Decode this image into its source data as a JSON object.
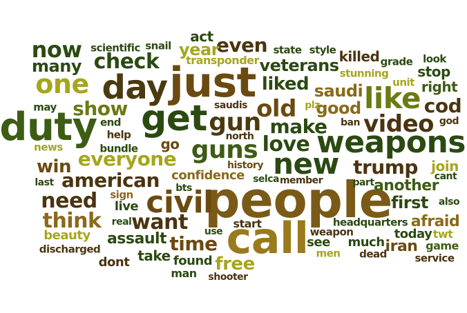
{
  "palette": {
    "dark_green": "#2b4a12",
    "forest": "#3d5c14",
    "olive": "#6b7a14",
    "lime": "#a6a61e",
    "brown": "#6b4a12",
    "gold": "#8a6a1a",
    "dark_brown": "#4a3410"
  },
  "words": [
    {
      "id": "people",
      "text": "people",
      "color": "#7a5a16"
    },
    {
      "id": "just",
      "text": "just",
      "color": "#6b4a12"
    },
    {
      "id": "call",
      "text": "call",
      "color": "#9a7a1e"
    },
    {
      "id": "duty",
      "text": "duty",
      "color": "#3d5c14"
    },
    {
      "id": "get",
      "text": "get",
      "color": "#2b4a12"
    },
    {
      "id": "day",
      "text": "day",
      "color": "#4a3a10"
    },
    {
      "id": "weapons",
      "text": "weapons",
      "color": "#2b4a12"
    },
    {
      "id": "civil",
      "text": "civil",
      "color": "#6b4a12"
    },
    {
      "id": "like",
      "text": "like",
      "color": "#6b7a14"
    },
    {
      "id": "new",
      "text": "new",
      "color": "#2b4a12"
    },
    {
      "id": "one",
      "text": "one",
      "color": "#a6a61e"
    },
    {
      "id": "gun",
      "text": "gun",
      "color": "#4a3a10"
    },
    {
      "id": "guns",
      "text": "guns",
      "color": "#3d5c14"
    },
    {
      "id": "old",
      "text": "old",
      "color": "#6b4a12"
    },
    {
      "id": "video",
      "text": "video",
      "color": "#4a3410"
    },
    {
      "id": "now",
      "text": "now",
      "color": "#2b4a12"
    },
    {
      "id": "check",
      "text": "check",
      "color": "#2b4a12"
    },
    {
      "id": "even",
      "text": "even",
      "color": "#4a3410"
    },
    {
      "id": "everyone",
      "text": "everyone",
      "color": "#a6a61e"
    },
    {
      "id": "american",
      "text": "american",
      "color": "#4a3410"
    },
    {
      "id": "need",
      "text": "need",
      "color": "#4a3410"
    },
    {
      "id": "think",
      "text": "think",
      "color": "#8a6a1a"
    },
    {
      "id": "want",
      "text": "want",
      "color": "#4a3410"
    },
    {
      "id": "love",
      "text": "love",
      "color": "#2b4a12"
    },
    {
      "id": "make",
      "text": "make",
      "color": "#2b4a12"
    },
    {
      "id": "trump",
      "text": "trump",
      "color": "#4a3410"
    },
    {
      "id": "show",
      "text": "show",
      "color": "#6b7a14"
    },
    {
      "id": "cod",
      "text": "cod",
      "color": "#4a3410"
    },
    {
      "id": "win",
      "text": "win",
      "color": "#6b4a12"
    },
    {
      "id": "time",
      "text": "time",
      "color": "#6b4a12"
    },
    {
      "id": "liked",
      "text": "liked",
      "color": "#2b4a12"
    },
    {
      "id": "year",
      "text": "year",
      "color": "#a6a61e"
    },
    {
      "id": "many",
      "text": "many",
      "color": "#2b4a12"
    },
    {
      "id": "veterans",
      "text": "veterans",
      "color": "#2b4a12"
    },
    {
      "id": "first",
      "text": "first",
      "color": "#2b4a12"
    },
    {
      "id": "free",
      "text": "free",
      "color": "#a6a61e"
    },
    {
      "id": "good",
      "text": "good",
      "color": "#8a6a1a"
    },
    {
      "id": "saudi",
      "text": "saudi",
      "color": "#8a6a1a"
    },
    {
      "id": "another",
      "text": "another",
      "color": "#3d5c14"
    },
    {
      "id": "assault",
      "text": "assault",
      "color": "#2b4a12"
    },
    {
      "id": "afraid",
      "text": "afraid",
      "color": "#8a6a1a"
    },
    {
      "id": "iran",
      "text": "iran",
      "color": "#6b4a12"
    },
    {
      "id": "killed",
      "text": "killed",
      "color": "#4a3410"
    },
    {
      "id": "right",
      "text": "right",
      "color": "#3d5c14"
    },
    {
      "id": "stop",
      "text": "stop",
      "color": "#2b4a12"
    },
    {
      "id": "join",
      "text": "join",
      "color": "#a6a61e"
    },
    {
      "id": "confidence",
      "text": "confidence",
      "color": "#8a6a1a"
    },
    {
      "id": "take",
      "text": "take",
      "color": "#2b4a12"
    },
    {
      "id": "today",
      "text": "today",
      "color": "#2b4a12"
    },
    {
      "id": "see",
      "text": "see",
      "color": "#2b4a12"
    },
    {
      "id": "much",
      "text": "much",
      "color": "#2b4a12"
    },
    {
      "id": "start",
      "text": "start",
      "color": "#4a3410"
    },
    {
      "id": "go",
      "text": "go",
      "color": "#6b4a12"
    },
    {
      "id": "dont",
      "text": "dont",
      "color": "#4a3410"
    },
    {
      "id": "beauty",
      "text": "beauty",
      "color": "#a6a61e"
    },
    {
      "id": "act",
      "text": "act",
      "color": "#2b4a12"
    },
    {
      "id": "live",
      "text": "live",
      "color": "#2b4a12"
    },
    {
      "id": "found",
      "text": "found",
      "color": "#2b4a12"
    },
    {
      "id": "man",
      "text": "man",
      "color": "#2b4a12"
    },
    {
      "id": "headquarters",
      "text": "headquarters",
      "color": "#2b4a12"
    },
    {
      "id": "weapon",
      "text": "weapon",
      "color": "#4a3410"
    },
    {
      "id": "game",
      "text": "game",
      "color": "#3d5c14"
    },
    {
      "id": "twt",
      "text": "twt",
      "color": "#a6a61e"
    },
    {
      "id": "service",
      "text": "service",
      "color": "#4a3410"
    },
    {
      "id": "dead",
      "text": "dead",
      "color": "#4a3410"
    },
    {
      "id": "men",
      "text": "men",
      "color": "#a6a61e"
    },
    {
      "id": "transponder",
      "text": "transponder",
      "color": "#a6a61e"
    },
    {
      "id": "scientific",
      "text": "scientific",
      "color": "#2b4a12"
    },
    {
      "id": "snail",
      "text": "snail",
      "color": "#2b4a12"
    },
    {
      "id": "state",
      "text": "state",
      "color": "#2b4a12"
    },
    {
      "id": "style",
      "text": "style",
      "color": "#2b4a12"
    },
    {
      "id": "grade",
      "text": "grade",
      "color": "#2b4a12"
    },
    {
      "id": "look",
      "text": "look",
      "color": "#2b4a12"
    },
    {
      "id": "stunning",
      "text": "stunning",
      "color": "#a6a61e"
    },
    {
      "id": "unit",
      "text": "unit",
      "color": "#a6a61e"
    },
    {
      "id": "may",
      "text": "may",
      "color": "#2b4a12"
    },
    {
      "id": "end",
      "text": "end",
      "color": "#2b4a12"
    },
    {
      "id": "help",
      "text": "help",
      "color": "#4a3410"
    },
    {
      "id": "saudis",
      "text": "saudis",
      "color": "#4a3410"
    },
    {
      "id": "plz",
      "text": "plz",
      "color": "#a6a61e"
    },
    {
      "id": "north",
      "text": "north",
      "color": "#4a3410"
    },
    {
      "id": "ban",
      "text": "ban",
      "color": "#4a3410"
    },
    {
      "id": "god",
      "text": "god",
      "color": "#4a3410"
    },
    {
      "id": "news",
      "text": "news",
      "color": "#a6a61e"
    },
    {
      "id": "bundle",
      "text": "bundle",
      "color": "#2b4a12"
    },
    {
      "id": "history",
      "text": "history",
      "color": "#6b4a12"
    },
    {
      "id": "cant",
      "text": "cant",
      "color": "#2b4a12"
    },
    {
      "id": "last",
      "text": "last",
      "color": "#2b4a12"
    },
    {
      "id": "sign",
      "text": "sign",
      "color": "#8a6a1a"
    },
    {
      "id": "bts",
      "text": "bts",
      "color": "#2b4a12"
    },
    {
      "id": "selca",
      "text": "selca",
      "color": "#2b4a12"
    },
    {
      "id": "member",
      "text": "member",
      "color": "#4a3410"
    },
    {
      "id": "part",
      "text": "part",
      "color": "#2b4a12"
    },
    {
      "id": "also",
      "text": "also",
      "color": "#2b4a12"
    },
    {
      "id": "real",
      "text": "real",
      "color": "#2b4a12"
    },
    {
      "id": "use",
      "text": "use",
      "color": "#2b4a12"
    },
    {
      "id": "discharged",
      "text": "discharged",
      "color": "#4a3410"
    },
    {
      "id": "shooter",
      "text": "shooter",
      "color": "#4a3410"
    }
  ]
}
